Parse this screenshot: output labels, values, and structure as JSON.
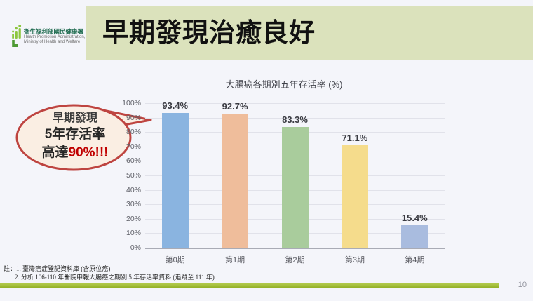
{
  "slide": {
    "background": "#F4F5FA",
    "page_number": "10"
  },
  "header": {
    "band_color": "#DBE2BC",
    "title": "早期發現治癒良好",
    "logo": {
      "org_zh": "衛生福利部國民健康署",
      "org_en_line1": "Health Promotion Administration,",
      "org_en_line2": "Ministry of Health and Welfare",
      "green": "#8CC63E"
    }
  },
  "callout": {
    "line1": "早期發現",
    "line2": "5年存活率",
    "line3_prefix": "高達",
    "line3_highlight": "90%",
    "line3_suffix": "!!!",
    "fill": "#FAEEE3",
    "border": "#BE4440",
    "highlight_color": "#C00000"
  },
  "chart_data": {
    "type": "bar",
    "title": "大腸癌各期別五年存活率 (%)",
    "categories": [
      "第0期",
      "第1期",
      "第2期",
      "第3期",
      "第4期"
    ],
    "values": [
      93.4,
      92.7,
      83.3,
      71.1,
      15.4
    ],
    "value_labels": [
      "93.4%",
      "92.7%",
      "83.3%",
      "71.1%",
      "15.4%"
    ],
    "bar_colors": [
      "#8AB4E0",
      "#EFBD9B",
      "#A9CC9C",
      "#F5DC8C",
      "#A9BCDF"
    ],
    "ylim": [
      0,
      100
    ],
    "yticks": [
      "100%",
      "90%",
      "80%",
      "70%",
      "60%",
      "50%",
      "40%",
      "30%",
      "20%",
      "10%",
      "0%"
    ],
    "grid": true,
    "legend": "none",
    "xlabel": "",
    "ylabel": ""
  },
  "footnote": {
    "line1": "註：1. 臺灣癌症登記資料庫 (含原位癌)",
    "line2": "2. 分析 106-110 年醫院申報大腸癌之期別 5 年存活率資料 (追蹤至 111 年)"
  },
  "footer": {
    "bar_color": "#9DBB31"
  }
}
